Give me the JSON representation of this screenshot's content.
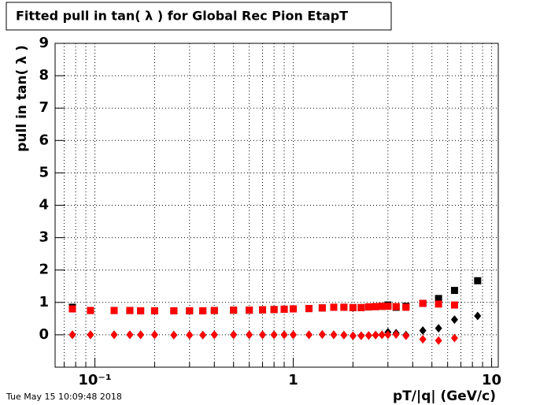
{
  "chart_data": {
    "type": "scatter",
    "title": "Fitted pull in tan( λ ) for Global Rec Pion EtapT",
    "x_label": "pT/|q| (GeV/c)",
    "y_label": "pull in tan( λ )",
    "timestamp": "Tue May 15 10:09:48 2018",
    "x_log": true,
    "grid": true,
    "xlim": [
      0.063,
      10.8
    ],
    "xticks": [
      {
        "value": 0.1,
        "label": "10⁻¹"
      },
      1,
      10
    ],
    "xminorticks": [
      0.07,
      0.08,
      0.09,
      0.2,
      0.3,
      0.4,
      0.5,
      0.6,
      0.7,
      0.8,
      0.9,
      2,
      3,
      4,
      5,
      6,
      7,
      8,
      9
    ],
    "ylim": [
      -1,
      9
    ],
    "yticks": [
      0,
      1,
      2,
      3,
      4,
      5,
      6,
      7,
      8,
      9
    ],
    "x": [
      0.077,
      0.095,
      0.125,
      0.15,
      0.17,
      0.2,
      0.25,
      0.3,
      0.35,
      0.4,
      0.5,
      0.6,
      0.7,
      0.8,
      0.9,
      1.0,
      1.2,
      1.4,
      1.6,
      1.8,
      2.0,
      2.2,
      2.4,
      2.6,
      2.8,
      3.0,
      3.3,
      3.7,
      4.5,
      5.4,
      6.5,
      8.5
    ],
    "series": [
      {
        "color": "#000000",
        "marker": "square",
        "values": [
          0.85,
          0.75,
          0.75,
          0.75,
          0.74,
          0.74,
          0.74,
          0.74,
          0.74,
          0.75,
          0.76,
          0.76,
          0.77,
          0.78,
          0.79,
          0.8,
          0.81,
          0.83,
          0.85,
          0.85,
          0.84,
          0.84,
          0.86,
          0.87,
          0.88,
          0.92,
          0.85,
          0.88,
          0.97,
          1.12,
          1.37,
          1.67
        ]
      },
      {
        "color": "#000000",
        "marker": "diamond",
        "values": [
          0.0,
          0.0,
          0.0,
          0.0,
          0.0,
          0.0,
          -0.01,
          -0.01,
          -0.01,
          0.0,
          0.0,
          0.0,
          0.0,
          0.0,
          0.0,
          0.0,
          0.0,
          0.01,
          0.0,
          -0.01,
          -0.03,
          -0.03,
          -0.02,
          -0.01,
          0.0,
          0.08,
          0.05,
          -0.01,
          0.13,
          0.2,
          0.47,
          0.58
        ]
      },
      {
        "color": "#ff0000",
        "marker": "square",
        "values": [
          0.8,
          0.75,
          0.75,
          0.75,
          0.74,
          0.74,
          0.74,
          0.74,
          0.74,
          0.75,
          0.76,
          0.76,
          0.77,
          0.78,
          0.79,
          0.8,
          0.81,
          0.83,
          0.85,
          0.85,
          0.84,
          0.84,
          0.86,
          0.87,
          0.88,
          0.88,
          0.87,
          0.85,
          0.97,
          0.95,
          0.92,
          null
        ]
      },
      {
        "color": "#ff0000",
        "marker": "diamond",
        "values": [
          0.0,
          0.0,
          0.0,
          0.0,
          0.0,
          0.0,
          -0.01,
          -0.01,
          -0.01,
          0.0,
          0.0,
          0.0,
          0.0,
          0.0,
          0.0,
          0.0,
          0.0,
          0.01,
          0.0,
          -0.01,
          -0.03,
          -0.03,
          -0.02,
          -0.01,
          0.0,
          0.0,
          0.01,
          -0.03,
          -0.14,
          -0.18,
          -0.1,
          null
        ]
      }
    ]
  }
}
